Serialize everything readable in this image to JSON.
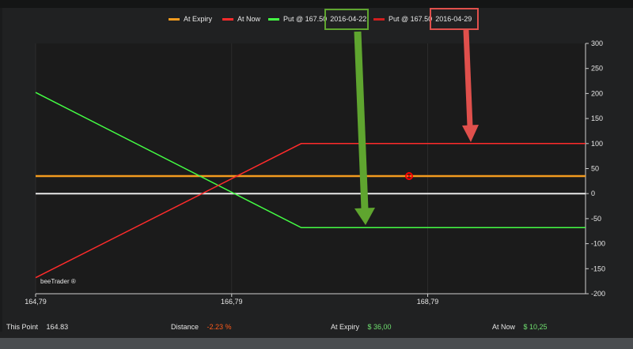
{
  "chart_data": {
    "type": "line",
    "x_ticks": [
      "164,79",
      "166,79",
      "168,79"
    ],
    "x_tick_values": [
      164.79,
      166.79,
      168.79
    ],
    "xlim": [
      164.79,
      170.4
    ],
    "ylim": [
      -200,
      300
    ],
    "y_ticks": [
      "300",
      "250",
      "200",
      "150",
      "100",
      "50",
      "0",
      "-50",
      "-100",
      "-150",
      "-200"
    ],
    "y_tick_values": [
      300,
      250,
      200,
      150,
      100,
      50,
      0,
      -50,
      -100,
      -150,
      -200
    ],
    "zero_line": true,
    "grid": "vertical lines only",
    "legend_position": "top-center",
    "series": [
      {
        "name": "At Expiry",
        "color": "#f39b1e",
        "x": [
          164.79,
          170.4
        ],
        "y": [
          35,
          35
        ]
      },
      {
        "name": "At Now",
        "color": "#ff2b2b",
        "x": [
          164.79,
          167.5,
          170.4
        ],
        "y": [
          -168,
          100,
          100
        ]
      },
      {
        "name": "Put @ 167.50",
        "date": "2016-04-22",
        "color": "#44ff44",
        "x": [
          164.79,
          167.5,
          170.4
        ],
        "y": [
          202,
          -68,
          -68
        ]
      },
      {
        "name": "Put @ 167.50",
        "date": "2016-04-29",
        "color": "#d11f1f",
        "x": [
          164.79,
          167.5,
          170.4
        ],
        "y": [
          -168,
          100,
          100
        ]
      }
    ],
    "marker": {
      "x": 168.6,
      "y": 35,
      "color": "#ff0000"
    },
    "annotations": [
      {
        "type": "box",
        "target": "2016-04-22",
        "color": "#5fa52f"
      },
      {
        "type": "arrow",
        "target": "Put @ 167.50 2016-04-22",
        "color": "#5fa52f"
      },
      {
        "type": "box",
        "target": "2016-04-29",
        "color": "#e0504c"
      },
      {
        "type": "arrow",
        "target": "Put @ 167.50 2016-04-29",
        "color": "#e0504c"
      }
    ],
    "watermark": "beeTrader ®"
  },
  "legend": [
    {
      "label": "At Expiry",
      "date": "",
      "color": "#f39b1e"
    },
    {
      "label": "At Now",
      "date": "",
      "color": "#ff2b2b"
    },
    {
      "label": "Put @ 167.50",
      "date": "2016-04-22",
      "color": "#44ff44"
    },
    {
      "label": "Put @ 167.50",
      "date": "2016-04-29",
      "color": "#d11f1f"
    }
  ],
  "status": {
    "this_point_label": "This Point",
    "this_point_value": "164.83",
    "distance_label": "Distance",
    "distance_value": "-2.23 %",
    "at_expiry_label": "At Expiry",
    "at_expiry_value": "$ 36,00",
    "at_now_label": "At Now",
    "at_now_value": "$ 10,25"
  }
}
